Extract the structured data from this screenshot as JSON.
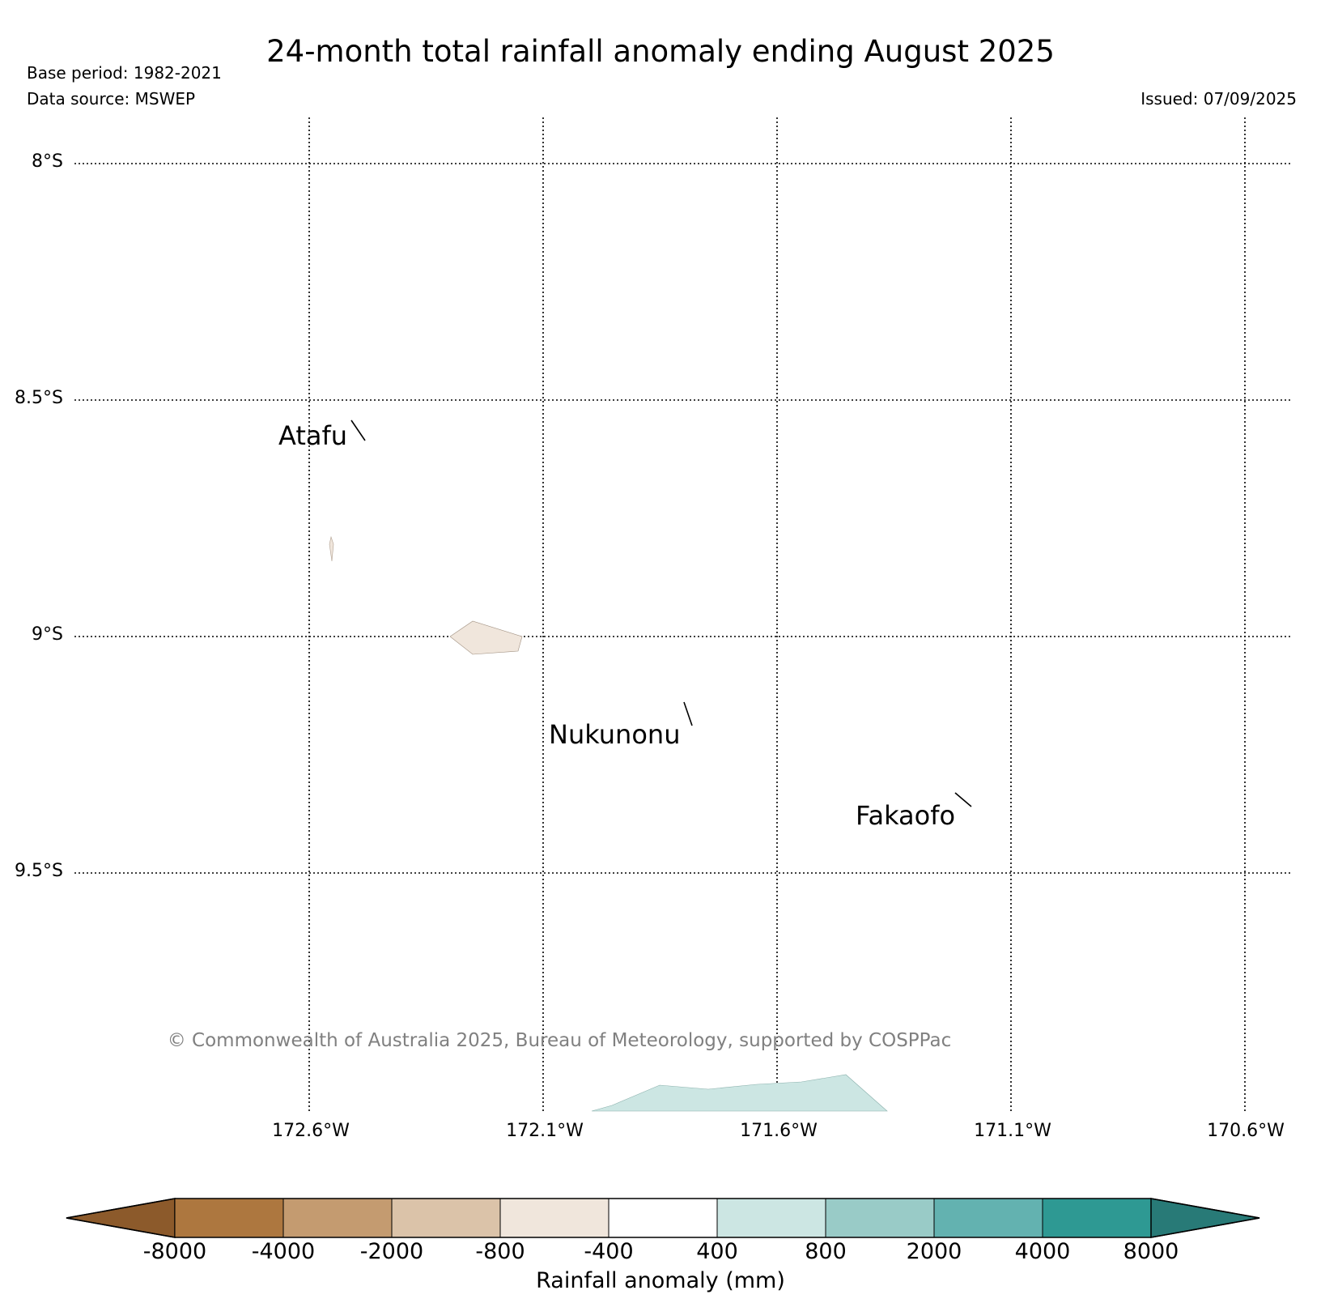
{
  "title": "24-month total rainfall anomaly ending August 2025",
  "base_period": "Base period: 1982-2021",
  "data_source": "Data source: MSWEP",
  "issued": "Issued: 07/09/2025",
  "map": {
    "lat_labels": [
      "8°S",
      "8.5°S",
      "9°S",
      "9.5°S"
    ],
    "lon_labels": [
      "172.6°W",
      "172.1°W",
      "171.6°W",
      "171.1°W",
      "170.6°W"
    ],
    "places": [
      "Atafu",
      "Nukunonu",
      "Fakaofo"
    ],
    "copyright": "© Commonwealth of Australia 2025, Bureau of Meteorology, supported by COSPPac"
  },
  "colorbar": {
    "label": "Rainfall anomaly (mm)",
    "ticks": [
      "-8000",
      "-4000",
      "-2000",
      "-800",
      "-400",
      "400",
      "800",
      "2000",
      "4000",
      "8000"
    ],
    "colors": [
      "#8c5a2b",
      "#ad773f",
      "#c49b70",
      "#dbc3a9",
      "#f0e6dc",
      "#ffffff",
      "#cce6e3",
      "#99cbc7",
      "#63b2b0",
      "#2e9993",
      "#287a77"
    ]
  }
}
